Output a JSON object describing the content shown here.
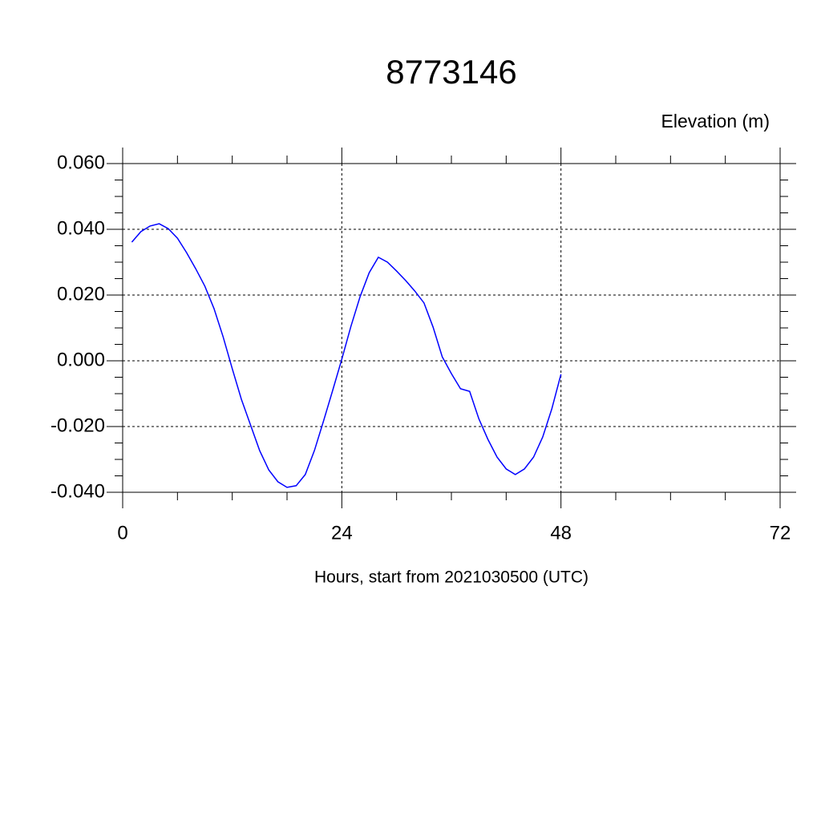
{
  "chart_data": {
    "type": "line",
    "title": "8773146",
    "y_label": "Elevation (m)",
    "x_label": "Hours, start from 2021030500 (UTC)",
    "x": [
      1,
      2,
      3,
      4,
      5,
      6,
      7,
      8,
      9,
      10,
      11,
      12,
      13,
      14,
      15,
      16,
      17,
      18,
      19,
      20,
      21,
      22,
      23,
      24,
      25,
      26,
      27,
      28,
      29,
      30,
      31,
      32,
      33,
      34,
      35,
      36,
      37,
      38,
      39,
      40,
      41,
      42,
      43,
      44,
      45,
      46,
      47,
      48
    ],
    "series": [
      {
        "color": "#0000ff",
        "values": [
          0.0361,
          0.0393,
          0.041,
          0.0417,
          0.0402,
          0.0373,
          0.0329,
          0.028,
          0.0227,
          0.0159,
          0.0073,
          -0.0024,
          -0.0117,
          -0.0195,
          -0.0273,
          -0.0332,
          -0.0368,
          -0.0385,
          -0.038,
          -0.0346,
          -0.0273,
          -0.0183,
          -0.009,
          0.0005,
          0.0105,
          0.0195,
          0.0268,
          0.0315,
          0.03,
          0.0273,
          0.0244,
          0.0212,
          0.0176,
          0.0102,
          0.0012,
          -0.0039,
          -0.0085,
          -0.0093,
          -0.0176,
          -0.0239,
          -0.0293,
          -0.0329,
          -0.0346,
          -0.0329,
          -0.0293,
          -0.0232,
          -0.0146,
          -0.0041
        ]
      }
    ],
    "xlim": [
      0,
      72
    ],
    "xticks": [
      0,
      24,
      48,
      72
    ],
    "ylim": [
      -0.04,
      0.06
    ],
    "yticks": [
      {
        "value": -0.04,
        "label": "-0.040"
      },
      {
        "value": -0.02,
        "label": "-0.020"
      },
      {
        "value": 0,
        "label": "0.000"
      },
      {
        "value": 0.02,
        "label": "0.020"
      },
      {
        "value": 0.04,
        "label": "0.040"
      },
      {
        "value": 0.06,
        "label": "0.060"
      }
    ],
    "grid": true
  }
}
